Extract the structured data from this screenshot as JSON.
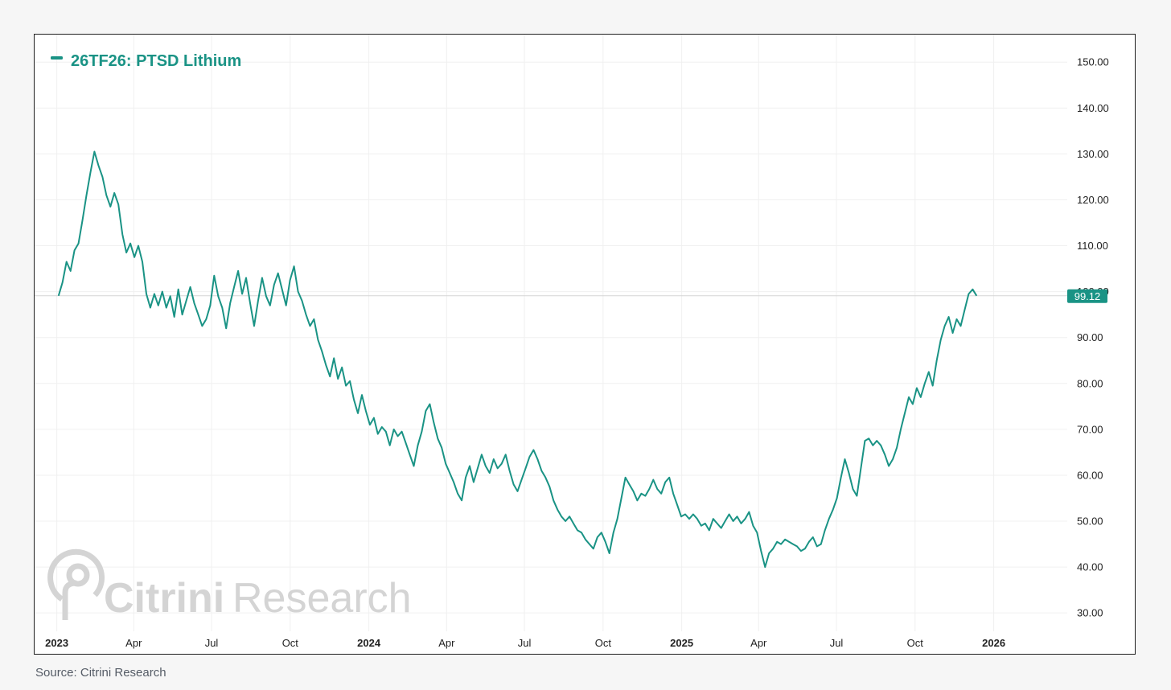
{
  "source_note": "Source: Citrini Research",
  "watermark": {
    "brand_bold": "Citrini",
    "brand_light": "Research"
  },
  "colors": {
    "series": "#1a9385",
    "grid": "#f0f0f0",
    "last_line": "#d5d5d5",
    "watermark": "#d4d4d4"
  },
  "chart_data": {
    "type": "line",
    "title": "",
    "legend_position": "top-left",
    "grid": true,
    "series": [
      {
        "name": "26TF26: PTSD Lithium",
        "last_value_label": "99.12",
        "x_start": "2023-01-03",
        "x_end": "2025-12-12",
        "values": [
          99.1,
          102.0,
          106.5,
          104.5,
          109.0,
          110.5,
          115.5,
          121.0,
          126.0,
          130.5,
          127.5,
          125.0,
          121.0,
          118.5,
          121.5,
          119.0,
          112.5,
          108.5,
          110.5,
          107.5,
          110.0,
          106.5,
          99.5,
          96.5,
          99.5,
          97.0,
          100.0,
          96.5,
          99.0,
          94.5,
          100.5,
          95.0,
          98.0,
          101.0,
          97.5,
          95.0,
          92.5,
          94.0,
          97.0,
          103.5,
          99.0,
          96.5,
          92.0,
          97.5,
          101.0,
          104.5,
          99.5,
          103.0,
          97.5,
          92.5,
          98.0,
          103.0,
          99.0,
          97.0,
          101.5,
          104.0,
          100.5,
          97.0,
          102.5,
          105.5,
          100.0,
          98.0,
          95.0,
          92.5,
          94.0,
          89.5,
          87.0,
          84.0,
          81.5,
          85.5,
          81.0,
          83.5,
          79.5,
          80.5,
          76.5,
          73.5,
          77.5,
          74.0,
          71.0,
          72.5,
          69.0,
          70.5,
          69.5,
          66.5,
          70.0,
          68.5,
          69.5,
          67.0,
          64.5,
          62.0,
          66.5,
          69.5,
          74.0,
          75.5,
          71.5,
          68.0,
          66.0,
          62.5,
          60.5,
          58.5,
          56.0,
          54.5,
          59.5,
          62.0,
          58.5,
          61.5,
          64.5,
          62.0,
          60.5,
          63.5,
          61.5,
          62.5,
          64.5,
          61.0,
          58.0,
          56.5,
          59.0,
          61.5,
          64.0,
          65.5,
          63.5,
          61.0,
          59.5,
          57.5,
          54.5,
          52.5,
          51.0,
          50.0,
          51.0,
          49.5,
          48.0,
          47.5,
          46.0,
          45.0,
          44.0,
          46.5,
          47.5,
          45.5,
          43.0,
          47.5,
          50.5,
          55.0,
          59.5,
          58.0,
          56.5,
          54.5,
          56.0,
          55.5,
          57.0,
          59.0,
          57.0,
          56.0,
          58.5,
          59.5,
          56.0,
          53.5,
          51.0,
          51.5,
          50.5,
          51.5,
          50.5,
          49.0,
          49.5,
          48.0,
          50.5,
          49.5,
          48.5,
          50.0,
          51.5,
          50.0,
          51.0,
          49.5,
          50.5,
          52.0,
          49.0,
          47.5,
          43.5,
          40.0,
          43.0,
          44.0,
          45.5,
          45.0,
          46.0,
          45.5,
          45.0,
          44.5,
          43.5,
          44.0,
          45.5,
          46.5,
          44.5,
          45.0,
          48.0,
          50.5,
          52.5,
          55.0,
          59.5,
          63.5,
          60.5,
          57.0,
          55.5,
          61.5,
          67.5,
          68.0,
          66.5,
          67.5,
          66.5,
          64.5,
          62.0,
          63.5,
          66.0,
          70.0,
          73.5,
          77.0,
          75.5,
          79.0,
          77.0,
          80.0,
          82.5,
          79.5,
          85.0,
          89.5,
          92.5,
          94.5,
          91.0,
          94.0,
          92.5,
          96.0,
          99.5,
          100.5,
          99.1
        ]
      }
    ],
    "x_ticks": [
      {
        "date": "2023-01-01",
        "label": "2023",
        "bold": true
      },
      {
        "date": "2023-04-01",
        "label": "Apr",
        "bold": false
      },
      {
        "date": "2023-07-01",
        "label": "Jul",
        "bold": false
      },
      {
        "date": "2023-10-01",
        "label": "Oct",
        "bold": false
      },
      {
        "date": "2024-01-01",
        "label": "2024",
        "bold": true
      },
      {
        "date": "2024-04-01",
        "label": "Apr",
        "bold": false
      },
      {
        "date": "2024-07-01",
        "label": "Jul",
        "bold": false
      },
      {
        "date": "2024-10-01",
        "label": "Oct",
        "bold": false
      },
      {
        "date": "2025-01-01",
        "label": "2025",
        "bold": true
      },
      {
        "date": "2025-04-01",
        "label": "Apr",
        "bold": false
      },
      {
        "date": "2025-07-01",
        "label": "Jul",
        "bold": false
      },
      {
        "date": "2025-10-01",
        "label": "Oct",
        "bold": false
      },
      {
        "date": "2026-01-01",
        "label": "2026",
        "bold": true
      }
    ],
    "y_ticks": [
      30,
      40,
      50,
      60,
      70,
      80,
      90,
      100,
      110,
      120,
      130,
      140,
      150
    ],
    "y_tick_labels": [
      "30.00",
      "40.00",
      "50.00",
      "60.00",
      "70.00",
      "80.00",
      "90.00",
      "100.00",
      "110.00",
      "120.00",
      "130.00",
      "140.00",
      "150.00"
    ],
    "ylim": [
      26,
      156
    ],
    "xlim": [
      "2022-12-06",
      "2026-03-28"
    ],
    "y_axis_position": "right"
  }
}
